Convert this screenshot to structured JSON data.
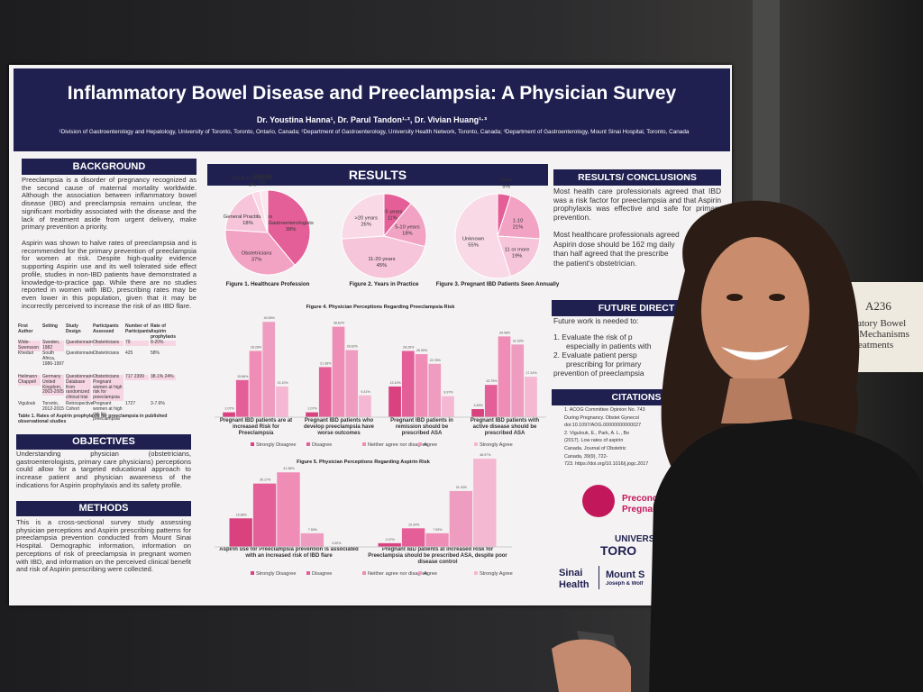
{
  "poster": {
    "title": "Inflammatory Bowel Disease and Preeclampsia: A Physician Survey",
    "authors": "Dr. Youstina Hanna¹, Dr. Parul Tandon¹·², Dr. Vivian Huang¹·³",
    "affiliations": "¹Division of Gastroenterology and Hepatology, University of Toronto, Toronto, Ontario, Canada; ²Department of Gastroenterology, University Health Network, Toronto, Canada; ³Department of Gastroenterology, Mount Sinai Hospital, Toronto, Canada",
    "background": {
      "heading": "BACKGROUND",
      "paragraphs": [
        "Preeclampsia is a disorder of pregnancy recognized as the second cause of maternal mortality worldwide. Although the association between inflammatory bowel disease (IBD) and preeclampsia remains unclear, the significant morbidity associated with the disease and the lack of treatment aside from urgent delivery, make primary prevention a priority.",
        "Aspirin was shown to halve rates of preeclampsia and is recommended for the primary prevention of preeclampsia for women at risk. Despite high-quality evidence supporting Aspirin use and its well tolerated side effect profile, studies in non-IBD patients have demonstrated a knowledge-to-practice gap. While there are no studies reported in women with IBD, prescribing rates may be even lower in this population, given that it may be incorrectly perceived to increase the risk of an IBD flare."
      ]
    },
    "table": {
      "headers": [
        "First Author",
        "Setting",
        "Study Design",
        "Participants Assessed",
        "Number of Participants",
        "Rate of Aspirin prophylaxis"
      ],
      "rows": [
        [
          "Wide-Swensson",
          "Sweden, 1982",
          "Questionnaire",
          "Obstetricians",
          "79",
          "8-20%"
        ],
        [
          "Kheduri",
          "South Africa, 1986-1997",
          "Questionnaire",
          "Obstetricians",
          "425",
          "58%"
        ],
        [
          "Heilmann Chappell",
          "Germany United Kingdom, 2003-2005",
          "Questionnaire Database from randomized clinical trial",
          "Obstetricians Pregnant women at high risk for preeclampsia",
          "717 2399",
          "38.1% 24%"
        ],
        [
          "Vigulouk",
          "Toronto, 2012-2015",
          "Retrospective Cohort",
          "Pregnant women at high risk for preeclampsia",
          "1727",
          "3-7.6%"
        ]
      ],
      "caption": "Table 1. Rates of Aspirin prophylaxis for preeclampsia in published observational studies"
    },
    "objectives": {
      "heading": "OBJECTIVES",
      "text": "Understanding physician (obstetricians, gastroenterologists, primary care physicians) perceptions could allow for a targeted educational approach to increase patient and physician awareness of the indications for Aspirin prophylaxis and its safety profile."
    },
    "methods": {
      "heading": "METHODS",
      "text": "This is a cross-sectional survey study assessing physician perceptions and Aspirin prescribing patterns for preeclampsia prevention conducted from Mount Sinai Hospital. Demographic information, information on perceptions of risk of preeclampsia in pregnant women with IBD, and information on the perceived clinical benefit and risk of Aspirin prescribing were collected."
    },
    "results": {
      "heading": "RESULTS",
      "pies": [
        {
          "caption": "Figure 1. Healthcare Profession",
          "slices": [
            {
              "label": "Gastroenterologists",
              "value": 39,
              "value_label": "39%"
            },
            {
              "label": "Obstetricians",
              "value": 37,
              "value_label": "37%"
            },
            {
              "label": "General Practitioners",
              "value": 18,
              "value_label": "18%"
            },
            {
              "label": "Nurse Practitioner",
              "value": 3,
              "value_label": "3%"
            },
            {
              "label": "Midwife",
              "value": 3,
              "value_label": "3%"
            }
          ]
        },
        {
          "caption": "Figure 2. Years in Practice",
          "slices": [
            {
              "label": "<5 years",
              "value": 11,
              "value_label": "11%"
            },
            {
              "label": "5-10 years",
              "value": 18,
              "value_label": "18%"
            },
            {
              "label": "11-20 years",
              "value": 45,
              "value_label": "45%"
            },
            {
              "label": ">20 years",
              "value": 26,
              "value_label": "26%"
            }
          ]
        },
        {
          "caption": "Figure 3. Pregnant IBD Patients Seen Annually",
          "slices": [
            {
              "label": "None",
              "value": 5,
              "value_label": "5%"
            },
            {
              "label": "1-10",
              "value": 21,
              "value_label": "21%"
            },
            {
              "label": "11 or more",
              "value": 19,
              "value_label": "19%"
            },
            {
              "label": "Unknown",
              "value": 55,
              "value_label": "55%"
            }
          ]
        }
      ],
      "bar_charts": [
        {
          "type": "bar",
          "title": "Figure 4. Physician Perceptions Regarding Preeclampsia Risk",
          "categories": [
            "Pregnant IBD patients are at increased Risk for Preeclampsia",
            "Pregnant IBD patients who develop preeclampsia have worse outcomes",
            "Pregnant IBD patients in remission should be prescribed ASA",
            "Pregnant IBD patients with active disease should be prescribed ASA"
          ],
          "series": [
            {
              "name": "Strongly Disagree",
              "color": "#d9417f",
              "values": [
                2.07,
                2.07,
                13.1,
                3.45
              ],
              "value_labels": [
                "2.07%",
                "2.07%",
                "13.10%",
                "3.45%"
              ]
            },
            {
              "name": "Disagree",
              "color": "#e45f97",
              "values": [
                15.86,
                21.38,
                28.28,
                13.79
              ],
              "value_labels": [
                "15.86%",
                "21.38%",
                "28.28%",
                "13.79%"
              ]
            },
            {
              "name": "Neither agree nor disagree",
              "color": "#f08db6",
              "values": [
                28.28,
                38.62,
                26.9,
                34.48
              ],
              "value_labels": [
                "28.28%",
                "38.62%",
                "26.90%",
                "34.48%"
              ]
            },
            {
              "name": "Agree",
              "color": "#ee9dc1",
              "values": [
                40.69,
                28.62,
                22.76,
                31.03
              ],
              "value_labels": [
                "40.69%",
                "28.62%",
                "22.76%",
                "31.03%"
              ]
            },
            {
              "name": "Strongly Agree",
              "color": "#f5b8d3",
              "values": [
                13.1,
                9.31,
                8.97,
                17.24
              ],
              "value_labels": [
                "13.10%",
                "9.31%",
                "8.97%",
                "17.24%"
              ]
            }
          ]
        },
        {
          "type": "bar",
          "title": "Figure 5. Physician Perceptions Regarding Aspirin Risk",
          "categories": [
            "Aspirin use for Preeclampsia prevention is associated with an increased risk of IBD flare",
            "Pregnant IBD patients at Increased Risk for Preeclampsia should be prescribed ASA, despite poor disease control"
          ],
          "series": [
            {
              "name": "Strongly Disagree",
              "color": "#d9417f",
              "values": [
                15.86,
                2.07
              ],
              "value_labels": [
                "15.86%",
                "2.07%"
              ]
            },
            {
              "name": "Disagree",
              "color": "#e45f97",
              "values": [
                35.17,
                10.34
              ],
              "value_labels": [
                "35.17%",
                "10.34%"
              ]
            },
            {
              "name": "Neither agree nor disagree",
              "color": "#f08db6",
              "values": [
                41.38,
                7.59
              ],
              "value_labels": [
                "41.38%",
                "7.59%"
              ]
            },
            {
              "name": "Agree",
              "color": "#ee9dc1",
              "values": [
                7.59,
                31.03
              ],
              "value_labels": [
                "7.59%",
                "31.03%"
              ]
            },
            {
              "name": "Strongly Agree",
              "color": "#f5b8d3",
              "values": [
                0,
                48.97
              ],
              "value_labels": [
                "0.00%",
                "48.97%"
              ]
            }
          ]
        }
      ]
    },
    "conclusions": {
      "heading": "RESULTS/ CONCLUSIONS",
      "paragraph": "Most health care professionals agreed that IBD was a risk factor for preeclampsia and that Aspirin prophylaxis was effective and safe for primary prevention.",
      "lines": [
        "Most healthcare professionals agreed",
        "Aspirin dose should be 162 mg daily",
        "than half agreed that the prescribe",
        "the patient's obstetrician."
      ]
    },
    "future": {
      "heading": "FUTURE DIRECT",
      "intro": "Future work is needed to:",
      "lines": [
        "1.  Evaluate the risk of p",
        "especially in patients with",
        "2.  Evaluate patient persp",
        "prescribing for primary",
        "prevention of preeclampsia"
      ]
    },
    "citations": {
      "heading": "CITATIONS",
      "lines": [
        "1. ACOG Committee Opinion No. 743",
        "During Pregnancy. Obstet Gynecol",
        "doi:10.1097/AOG.00000000000027",
        "2. Vigulouk, E., Park, A. L., Be",
        "(2017). Low rates of aspirin",
        "Canada. Journal of Obstetric",
        "Canada, 39(9), 722-",
        "723. https://doi.org/10.1016/j.jogc.2017"
      ]
    },
    "logos": [
      "Preconc",
      "Pregnan",
      "UNIVERSIT",
      "TORO",
      "Sinai",
      "Health",
      "Mount S",
      "Joseph & Wolf"
    ]
  },
  "sign": {
    "code": "A236",
    "lines": [
      "mmatory Bowel",
      "ses: Mechanisms",
      "d Treatments"
    ]
  }
}
